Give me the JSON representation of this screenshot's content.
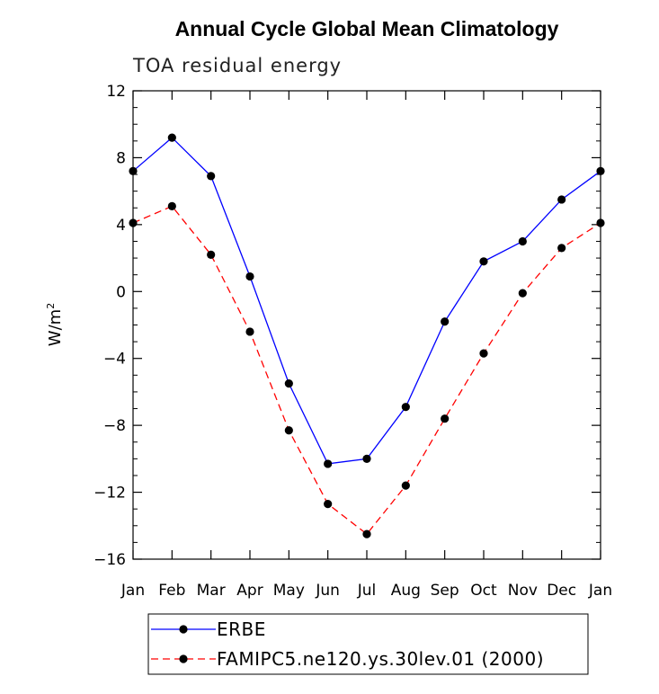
{
  "chart_data": {
    "type": "line",
    "title": "Annual Cycle Global Mean Climatology",
    "subtitle": "TOA residual energy",
    "xlabel": "",
    "ylabel": "W/m",
    "ylabel_superscript": "2",
    "categories": [
      "Jan",
      "Feb",
      "Mar",
      "Apr",
      "May",
      "Jun",
      "Jul",
      "Aug",
      "Sep",
      "Oct",
      "Nov",
      "Dec",
      "Jan"
    ],
    "yticks": [
      "12",
      "8",
      "4",
      "0",
      "−4",
      "−8",
      "−12",
      "−16"
    ],
    "ylim": [
      -16,
      12
    ],
    "grid": false,
    "legend_position": "bottom",
    "series": [
      {
        "name": "ERBE",
        "color": "#0000ff",
        "style": "solid",
        "values": [
          7.2,
          9.2,
          6.9,
          0.9,
          -5.5,
          -10.3,
          -10.0,
          -6.9,
          -1.8,
          1.8,
          3.0,
          5.5,
          7.2
        ]
      },
      {
        "name": "FAMIPC5.ne120.ys.30lev.01 (2000)",
        "color": "#ff0000",
        "style": "dashed",
        "values": [
          4.1,
          5.1,
          2.2,
          -2.4,
          -8.3,
          -12.7,
          -14.5,
          -11.6,
          -7.6,
          -3.7,
          -0.1,
          2.6,
          4.1
        ]
      }
    ]
  }
}
